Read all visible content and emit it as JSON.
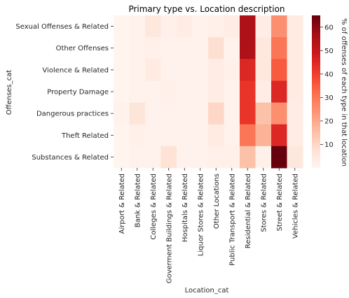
{
  "chart_data": {
    "type": "heatmap",
    "title": "Primary type vs. Location description",
    "xlabel": "Location_cat",
    "ylabel": "Offenses_cat",
    "colorbar_label": "% of offenses of each type in that location",
    "colormap": "Reds",
    "vmin": 0,
    "vmax": 65,
    "colorbar_ticks": [
      10,
      20,
      30,
      40,
      50,
      60
    ],
    "rows": [
      "Sexual Offenses & Related",
      "Other Offenses",
      "Violence & Related",
      "Property Damage",
      "Dangerous practices",
      "Theft Related",
      "Substances & Related"
    ],
    "columns": [
      "Airport & Related",
      "Bank & Related",
      "Colleges & Related",
      "Goverment Buildings & Related",
      "Hospitals & Related",
      "Liquor Stores & Related",
      "Other Locations",
      "Public Transport & Related",
      "Residential & Related",
      "Stores & Related",
      "Street & Related",
      "Vehicles & Related"
    ],
    "values": [
      [
        0.5,
        1,
        5,
        2,
        3,
        1,
        2,
        3,
        55,
        3,
        25,
        4
      ],
      [
        0.5,
        1,
        2,
        1,
        1,
        1,
        8,
        1,
        55,
        5,
        30,
        4
      ],
      [
        0.5,
        1,
        4,
        1,
        1,
        1,
        3,
        2,
        45,
        5,
        35,
        4
      ],
      [
        0.5,
        1,
        1,
        2,
        1,
        1,
        3,
        1,
        42,
        3,
        45,
        4
      ],
      [
        1,
        6,
        1,
        1,
        1,
        1,
        10,
        1,
        42,
        15,
        25,
        3
      ],
      [
        0.5,
        2,
        1,
        1,
        1,
        1,
        4,
        1,
        30,
        18,
        45,
        3
      ],
      [
        0.5,
        1,
        1,
        7,
        1,
        1,
        2,
        2,
        15,
        2,
        65,
        5
      ]
    ]
  }
}
